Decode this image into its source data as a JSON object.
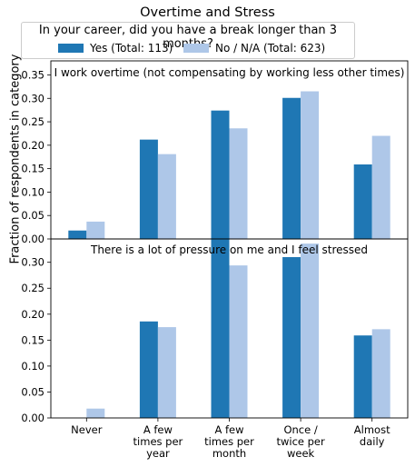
{
  "title": "Overtime and Stress",
  "ylabel": "Fraction of respondents in category",
  "legend": {
    "title": "In your career, did you have a break longer than 3 months?",
    "entries": [
      {
        "label": "Yes (Total: 113)",
        "color": "#1f77b4"
      },
      {
        "label": "No / N/A (Total: 623)",
        "color": "#aec7e8"
      }
    ]
  },
  "chart_data": [
    {
      "type": "bar",
      "title": "I work overtime (not compensating by working less other times)",
      "categories": [
        "Never",
        "A few times per year",
        "A few times per month",
        "Once / twice per week",
        "Almost daily"
      ],
      "series": [
        {
          "name": "Yes (Total: 113)",
          "values": [
            0.018,
            0.212,
            0.274,
            0.301,
            0.159
          ]
        },
        {
          "name": "No / N/A (Total: 623)",
          "values": [
            0.037,
            0.181,
            0.236,
            0.315,
            0.22
          ]
        }
      ],
      "ylim": [
        0,
        0.38
      ],
      "yticks": [
        "0.00",
        "0.05",
        "0.10",
        "0.15",
        "0.20",
        "0.25",
        "0.30",
        "0.35"
      ]
    },
    {
      "type": "bar",
      "title": "There is a lot of pressure on me and I feel stressed",
      "categories": [
        "Never",
        "A few times per year",
        "A few times per month",
        "Once / twice per week",
        "Almost daily"
      ],
      "category_lines": [
        [
          "Never"
        ],
        [
          "A few",
          "times per",
          "year"
        ],
        [
          "A few",
          "times per",
          "month"
        ],
        [
          "Once /",
          "twice per",
          "week"
        ],
        [
          "Almost",
          "daily"
        ]
      ],
      "series": [
        {
          "name": "Yes (Total: 113)",
          "values": [
            0.0,
            0.186,
            0.345,
            0.31,
            0.159
          ]
        },
        {
          "name": "No / N/A (Total: 623)",
          "values": [
            0.018,
            0.175,
            0.294,
            0.336,
            0.171
          ]
        }
      ],
      "ylim": [
        0,
        0.345
      ],
      "yticks": [
        "0.00",
        "0.05",
        "0.10",
        "0.15",
        "0.20",
        "0.25",
        "0.30",
        "0.35"
      ]
    }
  ]
}
